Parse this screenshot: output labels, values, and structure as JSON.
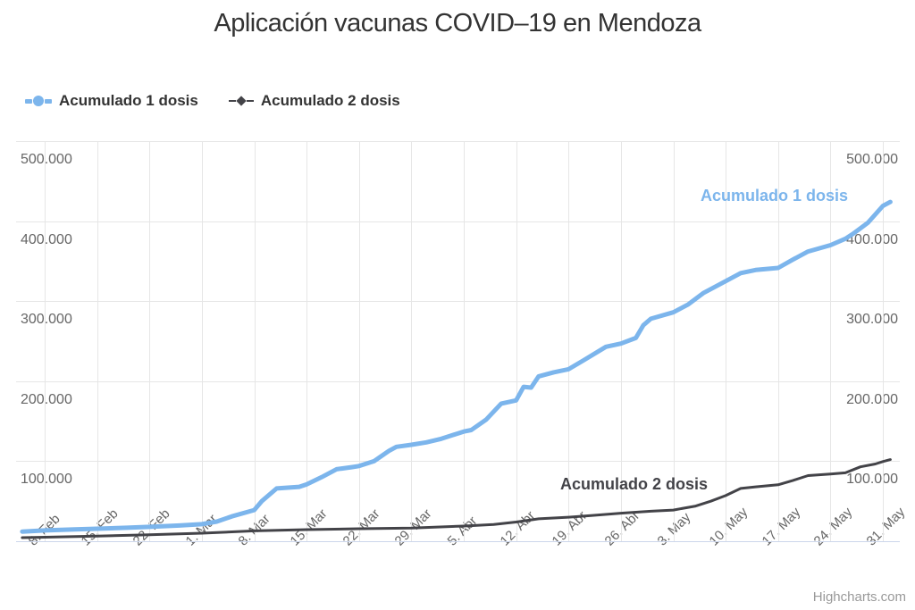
{
  "title": "Aplicación vacunas COVID–19 en Mendoza",
  "credits": "Highcharts.com",
  "colors": {
    "series1": "#7cb5ec",
    "series2": "#434348",
    "grid": "#e6e6e6",
    "axis_line": "#ccd6eb",
    "tick_label": "#666666",
    "title": "#333333",
    "credits": "#999999",
    "background": "#ffffff"
  },
  "legend": {
    "position": "top-left",
    "items": [
      {
        "label": "Acumulado 1 dosis",
        "marker": "circle",
        "color": "#7cb5ec"
      },
      {
        "label": "Acumulado 2 dosis",
        "marker": "diamond",
        "color": "#434348"
      }
    ]
  },
  "chart_data": {
    "type": "line",
    "title": "Aplicación vacunas COVID–19 en Mendoza",
    "grid": true,
    "legend_position": "top-left",
    "x_axis": {
      "type": "datetime",
      "day_zero_label": "8. Feb",
      "ticks": [
        {
          "day": 0,
          "label": "8. Feb"
        },
        {
          "day": 7,
          "label": "15. Feb"
        },
        {
          "day": 14,
          "label": "22. Feb"
        },
        {
          "day": 21,
          "label": "1. Mar"
        },
        {
          "day": 28,
          "label": "8. Mar"
        },
        {
          "day": 35,
          "label": "15. Mar"
        },
        {
          "day": 42,
          "label": "22. Mar"
        },
        {
          "day": 49,
          "label": "29. Mar"
        },
        {
          "day": 56,
          "label": "5. Abr"
        },
        {
          "day": 63,
          "label": "12. Abr"
        },
        {
          "day": 70,
          "label": "19. Abr"
        },
        {
          "day": 77,
          "label": "26. Abr"
        },
        {
          "day": 84,
          "label": "3. May"
        },
        {
          "day": 91,
          "label": "10. May"
        },
        {
          "day": 98,
          "label": "17. May"
        },
        {
          "day": 105,
          "label": "24. May"
        },
        {
          "day": 112,
          "label": "31. May"
        }
      ]
    },
    "y_axis": {
      "min": 0,
      "max": 500000,
      "tick_interval": 100000,
      "label_sides": [
        "left",
        "right"
      ],
      "ticks": [
        {
          "value": 500000,
          "label": "500.000"
        },
        {
          "value": 400000,
          "label": "400.000"
        },
        {
          "value": 300000,
          "label": "300.000"
        },
        {
          "value": 200000,
          "label": "200.000"
        },
        {
          "value": 100000,
          "label": "100.000"
        }
      ]
    },
    "point_format": "[days_since_8_Feb, cumulative_doses]",
    "series": [
      {
        "name": "Acumulado 1 dosis",
        "color": "#7cb5ec",
        "line_width": 5,
        "marker": "circle",
        "points": [
          [
            -3,
            12000
          ],
          [
            0,
            13500
          ],
          [
            4,
            14800
          ],
          [
            7,
            15600
          ],
          [
            11,
            16800
          ],
          [
            14,
            18000
          ],
          [
            18,
            19600
          ],
          [
            21,
            21300
          ],
          [
            23,
            24500
          ],
          [
            25,
            31000
          ],
          [
            28,
            39000
          ],
          [
            29,
            50000
          ],
          [
            31,
            66000
          ],
          [
            34,
            68000
          ],
          [
            35,
            71000
          ],
          [
            37,
            80000
          ],
          [
            39,
            90000
          ],
          [
            41,
            92500
          ],
          [
            42,
            94000
          ],
          [
            44,
            100000
          ],
          [
            46,
            113000
          ],
          [
            47,
            118000
          ],
          [
            49,
            120500
          ],
          [
            51,
            123500
          ],
          [
            53,
            128000
          ],
          [
            56,
            137000
          ],
          [
            57,
            139000
          ],
          [
            59,
            152000
          ],
          [
            61,
            172000
          ],
          [
            63,
            176000
          ],
          [
            64,
            193000
          ],
          [
            65,
            192000
          ],
          [
            66,
            206000
          ],
          [
            68,
            211000
          ],
          [
            70,
            215000
          ],
          [
            72,
            226000
          ],
          [
            75,
            243000
          ],
          [
            77,
            247000
          ],
          [
            79,
            254000
          ],
          [
            80,
            270000
          ],
          [
            81,
            278000
          ],
          [
            84,
            286000
          ],
          [
            86,
            296000
          ],
          [
            88,
            310000
          ],
          [
            91,
            325000
          ],
          [
            93,
            335000
          ],
          [
            95,
            339000
          ],
          [
            98,
            341500
          ],
          [
            100,
            352000
          ],
          [
            102,
            362000
          ],
          [
            105,
            370000
          ],
          [
            107,
            378000
          ],
          [
            108,
            384000
          ],
          [
            110,
            398000
          ],
          [
            112,
            419000
          ],
          [
            113,
            424000
          ]
        ]
      },
      {
        "name": "Acumulado 2 dosis",
        "color": "#434348",
        "line_width": 3,
        "marker": "diamond",
        "points": [
          [
            -3,
            4500
          ],
          [
            0,
            5000
          ],
          [
            7,
            6500
          ],
          [
            14,
            8000
          ],
          [
            21,
            10000
          ],
          [
            28,
            13000
          ],
          [
            35,
            14500
          ],
          [
            42,
            15600
          ],
          [
            49,
            16500
          ],
          [
            56,
            19000
          ],
          [
            60,
            21000
          ],
          [
            63,
            24000
          ],
          [
            66,
            28000
          ],
          [
            70,
            30000
          ],
          [
            73,
            32000
          ],
          [
            77,
            35000
          ],
          [
            81,
            37500
          ],
          [
            84,
            39000
          ],
          [
            87,
            44000
          ],
          [
            89,
            50000
          ],
          [
            91,
            57000
          ],
          [
            93,
            66000
          ],
          [
            95,
            68000
          ],
          [
            98,
            70500
          ],
          [
            100,
            76000
          ],
          [
            102,
            82000
          ],
          [
            105,
            84000
          ],
          [
            107,
            85500
          ],
          [
            109,
            93000
          ],
          [
            111,
            96500
          ],
          [
            112,
            99500
          ],
          [
            113,
            102000
          ]
        ]
      }
    ]
  }
}
